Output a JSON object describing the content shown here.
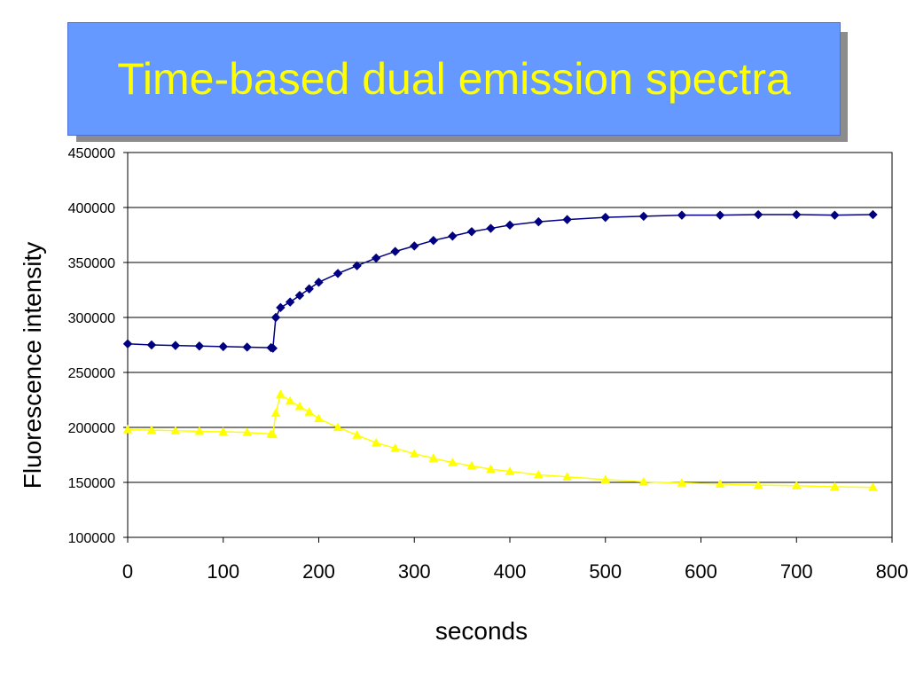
{
  "slide": {
    "title": "Time-based dual emission spectra"
  },
  "colors": {
    "title_bg": "#6699ff",
    "title_text": "#ffff00",
    "series_1": "#000080",
    "series_2": "#ffff00"
  },
  "chart_data": {
    "type": "line",
    "title": "",
    "xlabel": "seconds",
    "ylabel": "Fluorescence intensity",
    "xlim": [
      0,
      800
    ],
    "ylim": [
      100000,
      450000
    ],
    "xticks": [
      0,
      100,
      200,
      300,
      400,
      500,
      600,
      700,
      800
    ],
    "yticks": [
      100000,
      150000,
      200000,
      250000,
      300000,
      350000,
      400000,
      450000
    ],
    "grid": "horizontal",
    "legend": "none",
    "series": [
      {
        "marker": "diamond",
        "color": "#000080",
        "x": [
          0,
          25,
          50,
          75,
          100,
          125,
          150,
          152,
          155,
          160,
          170,
          180,
          190,
          200,
          220,
          240,
          260,
          280,
          300,
          320,
          340,
          360,
          380,
          400,
          430,
          460,
          500,
          540,
          580,
          620,
          660,
          700,
          740,
          780
        ],
        "y": [
          276000,
          275000,
          274500,
          274000,
          273500,
          273000,
          272500,
          272000,
          300000,
          309000,
          314000,
          320000,
          326000,
          332000,
          340000,
          347000,
          354000,
          360000,
          365000,
          370000,
          374000,
          378000,
          381000,
          384000,
          387000,
          389000,
          391000,
          392000,
          393000,
          393000,
          393500,
          393500,
          393000,
          393500
        ]
      },
      {
        "marker": "triangle",
        "color": "#ffff00",
        "x": [
          0,
          25,
          50,
          75,
          100,
          125,
          150,
          152,
          155,
          160,
          170,
          180,
          190,
          200,
          220,
          240,
          260,
          280,
          300,
          320,
          340,
          360,
          380,
          400,
          430,
          460,
          500,
          540,
          580,
          620,
          660,
          700,
          740,
          780
        ],
        "y": [
          198000,
          197500,
          197000,
          196500,
          196000,
          195500,
          194000,
          193500,
          213000,
          230000,
          224000,
          219000,
          214000,
          208000,
          200000,
          193000,
          186000,
          181000,
          176000,
          172000,
          168000,
          165000,
          162000,
          160000,
          157000,
          155000,
          152500,
          150500,
          149500,
          148500,
          147500,
          147000,
          146000,
          145500
        ]
      }
    ]
  }
}
